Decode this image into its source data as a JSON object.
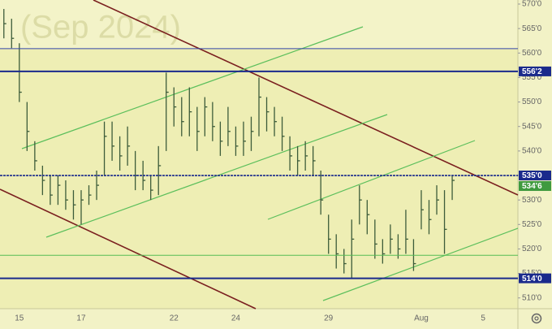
{
  "chart_data": {
    "type": "ohlc",
    "watermark": "(Sep 2024)",
    "color": "#3d5c3a",
    "categories": [
      null,
      null,
      "15",
      null,
      null,
      null,
      null,
      null,
      null,
      null,
      "17",
      null,
      null,
      null,
      null,
      null,
      null,
      null,
      null,
      null,
      null,
      null,
      "22",
      null,
      null,
      null,
      null,
      null,
      null,
      null,
      "24",
      null,
      null,
      null,
      null,
      null,
      null,
      null,
      null,
      null,
      null,
      null,
      "29",
      null,
      null,
      null,
      null,
      null,
      null,
      null,
      null,
      null,
      null,
      null,
      "Aug",
      null,
      null,
      null,
      null,
      null,
      null,
      null,
      "5",
      null,
      null,
      null,
      null
    ],
    "high": [
      569,
      567,
      562,
      550,
      542,
      537,
      535,
      535,
      534,
      532,
      532,
      533,
      536,
      546,
      546,
      543,
      545,
      540,
      538,
      535,
      541,
      556,
      553,
      551,
      553,
      549,
      551,
      550,
      546,
      549,
      545,
      546,
      547,
      555,
      551,
      549,
      547,
      543,
      541,
      542,
      541,
      536,
      527,
      523,
      520,
      526,
      533,
      530,
      526,
      522,
      525,
      523,
      528,
      522,
      532,
      530,
      533,
      532,
      535,
      null,
      null,
      null,
      null,
      null,
      null,
      null,
      null
    ],
    "low": [
      563,
      561,
      550,
      540,
      536,
      531,
      529,
      529,
      528,
      526,
      525,
      529,
      530,
      535,
      538,
      536,
      537,
      532,
      532,
      530,
      531,
      540,
      545,
      543,
      543,
      540,
      543,
      542,
      539,
      541,
      539,
      539,
      540,
      543,
      544,
      543,
      540,
      536,
      535,
      536,
      535,
      527,
      519,
      516,
      515,
      514,
      525,
      523,
      518,
      517,
      519,
      518,
      519,
      515.5,
      524,
      523,
      527,
      519,
      530,
      null,
      null,
      null,
      null,
      null,
      null,
      null,
      null
    ],
    "close": [
      566,
      563,
      552,
      544,
      538,
      534,
      531,
      533,
      530,
      529,
      530,
      531,
      533,
      543,
      541,
      539,
      541,
      535,
      534,
      532,
      537,
      552,
      549,
      546,
      548,
      544,
      549,
      545,
      542,
      544,
      541,
      542,
      544,
      551,
      548,
      546,
      543,
      539,
      538,
      539,
      538,
      530,
      522,
      519,
      517,
      522,
      530,
      527,
      521,
      519,
      522,
      520,
      522,
      517,
      528,
      526,
      530,
      524,
      534,
      null,
      null,
      null,
      null,
      null,
      null,
      null,
      null
    ],
    "ylim": [
      507.8,
      570.83
    ],
    "yticks": [
      {
        "value": 570,
        "label": "570'0"
      },
      {
        "value": 565,
        "label": "565'0"
      },
      {
        "value": 560,
        "label": "560'0"
      },
      {
        "value": 555,
        "label": "555'0"
      },
      {
        "value": 550,
        "label": "550'0"
      },
      {
        "value": 545,
        "label": "545'0"
      },
      {
        "value": 540,
        "label": "540'0"
      },
      {
        "value": 535,
        "label": "535'0"
      },
      {
        "value": 530,
        "label": "530'0"
      },
      {
        "value": 525,
        "label": "525'0"
      },
      {
        "value": 520,
        "label": "520'0"
      },
      {
        "value": 515,
        "label": "515'0"
      },
      {
        "value": 510,
        "label": "510'0"
      }
    ],
    "levels": [
      {
        "value": 560.9,
        "color": "#3344aa",
        "style": "thin"
      },
      {
        "value": 556.25,
        "label": "556'2",
        "color": "#1a2a8c",
        "style": "thick"
      },
      {
        "value": 535,
        "label": "535'0",
        "color": "#1a2a8c",
        "style": "dashed"
      },
      {
        "value": 534.75,
        "label": "534'6",
        "color": "#3f9a3f",
        "style": "none"
      },
      {
        "value": 518.7,
        "color": "#55bb55",
        "style": "thin"
      },
      {
        "value": 514,
        "label": "514'0",
        "color": "#1a2a8c",
        "style": "thick"
      }
    ]
  }
}
